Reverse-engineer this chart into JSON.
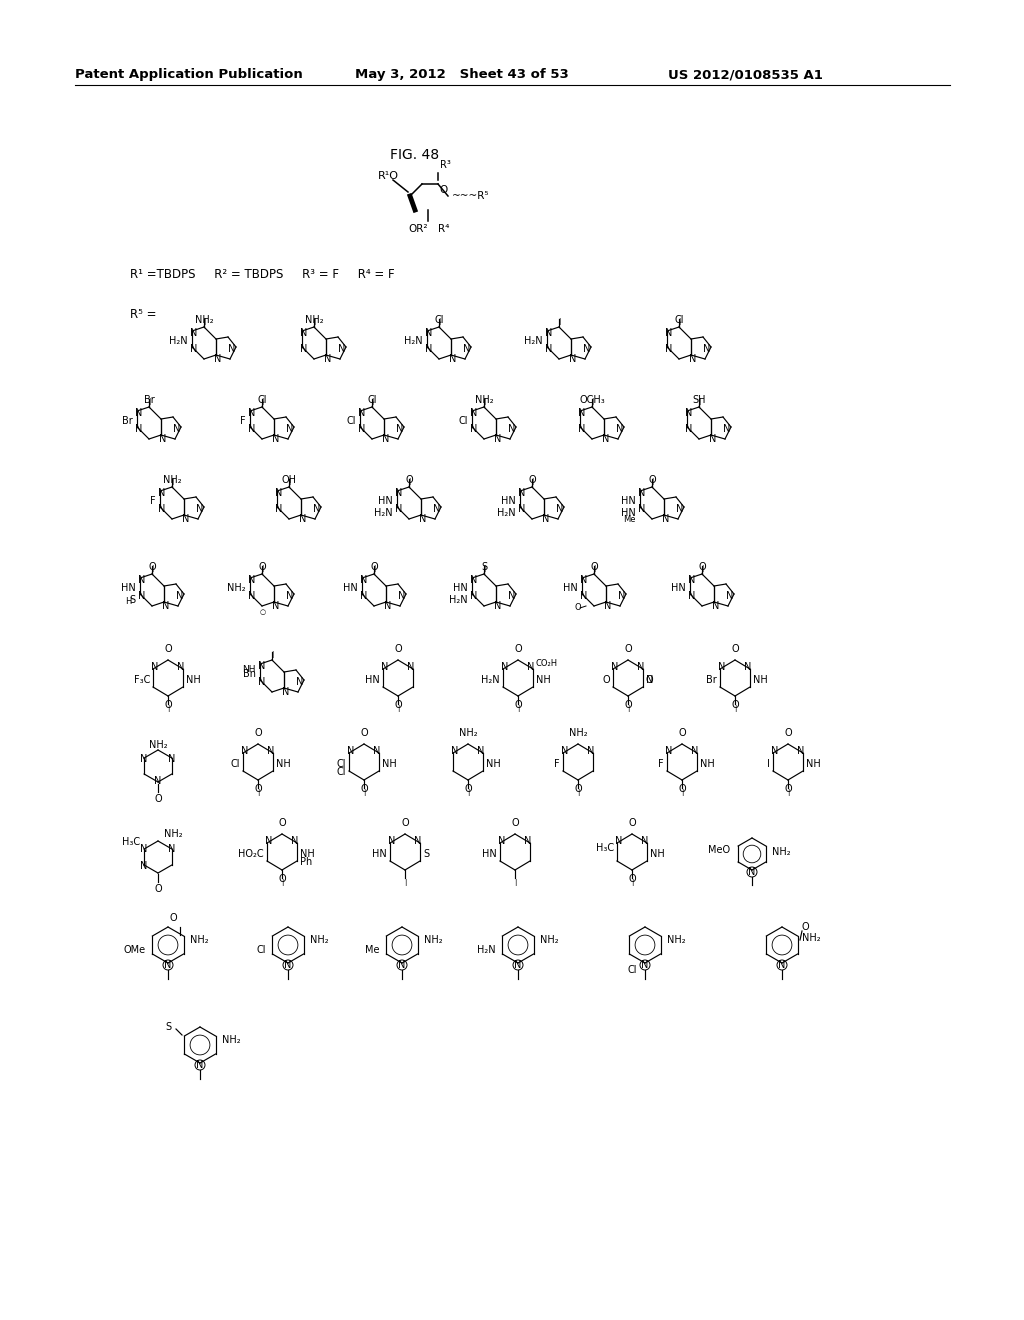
{
  "page_header_left": "Patent Application Publication",
  "page_header_middle": "May 3, 2012   Sheet 43 of 53",
  "page_header_right": "US 2012/0108535 A1",
  "fig_label": "FIG. 48",
  "background_color": "#ffffff",
  "text_color": "#000000",
  "fig_width": 10.24,
  "fig_height": 13.2,
  "dpi": 100,
  "r_conditions": "R1 =TBDPS     R2 = TBDPS     R3 = F     R4 = F",
  "r5_label": "R5 ="
}
